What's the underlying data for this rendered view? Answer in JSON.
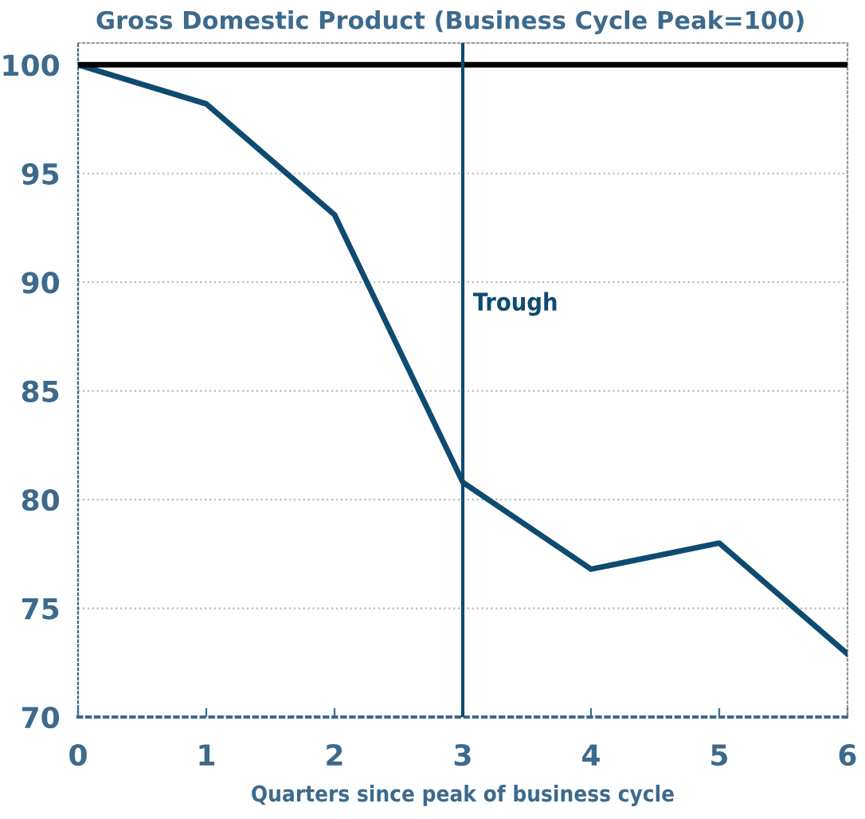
{
  "chart_data": {
    "type": "line",
    "title": "Gross Domestic Product (Business Cycle Peak=100)",
    "xlabel": "Quarters since peak of business cycle",
    "x": [
      0,
      1,
      2,
      3,
      4,
      5,
      6
    ],
    "series": [
      {
        "color": "#0f4a70",
        "values": [
          100,
          98.2,
          93.1,
          80.8,
          76.8,
          78.0,
          72.9
        ]
      }
    ],
    "xlim": [
      0,
      6
    ],
    "xticks": [
      0,
      1,
      2,
      3,
      4,
      5,
      6
    ],
    "ylim": [
      70,
      101
    ],
    "yticks": [
      70,
      75,
      80,
      85,
      90,
      95,
      100
    ],
    "grid": "y",
    "legend": false,
    "marker": "none",
    "line_style": "solid",
    "ref_lines": [
      {
        "axis": "y",
        "value": 100,
        "color": "#000000"
      },
      {
        "axis": "x",
        "value": 3,
        "label": "Trough",
        "color": "#0f4a70"
      }
    ]
  }
}
